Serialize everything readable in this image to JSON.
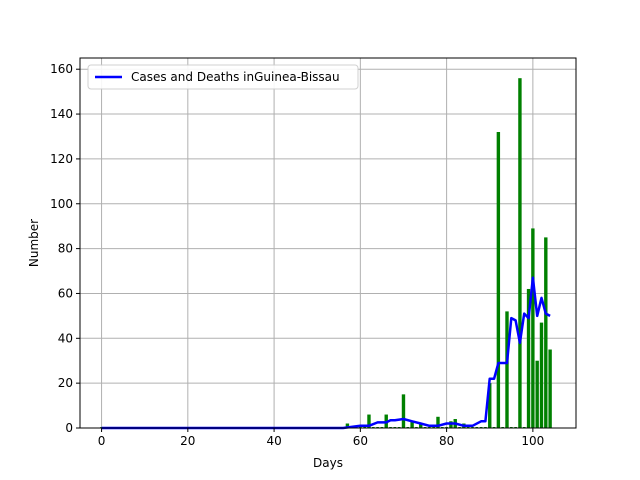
{
  "chart_data": {
    "type": "bar",
    "xlabel": "Days",
    "ylabel": "Number",
    "xlim": [
      -5,
      110
    ],
    "ylim": [
      0,
      165
    ],
    "xticks": [
      0,
      20,
      40,
      60,
      80,
      100
    ],
    "yticks": [
      0,
      20,
      40,
      60,
      80,
      100,
      120,
      140,
      160
    ],
    "grid": true,
    "legend": {
      "placement": "top-left",
      "entries": [
        "Cases and Deaths inGuinea-Bissau"
      ]
    },
    "colors": {
      "bars": "#008000",
      "line": "#0000ff",
      "grid": "#b0b0b0"
    },
    "bars": {
      "x": [
        57,
        62,
        66,
        70,
        72,
        74,
        78,
        81,
        82,
        84,
        90,
        92,
        94,
        97,
        99,
        100,
        101,
        102,
        103,
        104
      ],
      "values": [
        2,
        6,
        6,
        15,
        3,
        2,
        5,
        3,
        4,
        2,
        20,
        132,
        52,
        156,
        62,
        89,
        30,
        47,
        85,
        35
      ]
    },
    "line": {
      "name": "Cases and Deaths inGuinea-Bissau",
      "x": [
        0,
        50,
        54,
        56,
        58,
        60,
        62,
        64,
        66,
        67,
        68,
        70,
        72,
        74,
        76,
        78,
        80,
        82,
        84,
        86,
        88,
        89,
        90,
        91,
        92,
        93,
        94,
        95,
        96,
        97,
        98,
        99,
        100,
        101,
        102,
        103,
        104
      ],
      "values": [
        0,
        0,
        0,
        0,
        0.5,
        1,
        1,
        2.5,
        2.5,
        3.5,
        3.5,
        4,
        3,
        2,
        1,
        1,
        2,
        2,
        1,
        1,
        3,
        3,
        22,
        22,
        29,
        29,
        29,
        49,
        48,
        38,
        51,
        49,
        67,
        50,
        58,
        51,
        50
      ]
    }
  }
}
